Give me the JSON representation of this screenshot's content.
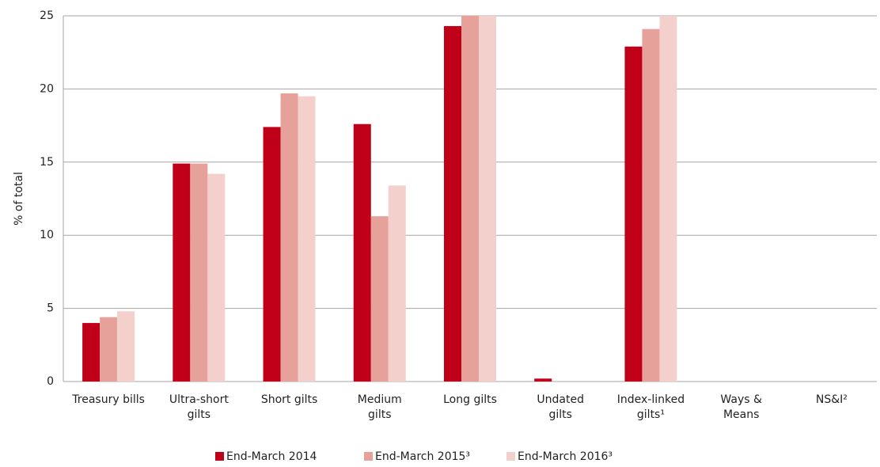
{
  "chart_data": {
    "type": "bar",
    "y_label": "% of total",
    "categories": [
      "Treasury bills",
      "Ultra-short\ngilts",
      "Short gilts",
      "Medium\ngilts",
      "Long gilts",
      "Undated\ngilts",
      "Index-linked\ngilts¹",
      "Ways &\nMeans",
      "NS&I²"
    ],
    "series": [
      {
        "name": "End-March 2014",
        "color": "#c00018",
        "values": [
          4.0,
          14.9,
          17.4,
          17.6,
          24.3,
          0.2,
          22.9,
          0,
          0
        ]
      },
      {
        "name": "End-March 2015³",
        "color": "#e6a19b",
        "values": [
          4.4,
          14.9,
          19.7,
          11.3,
          25,
          0,
          24.1,
          0,
          0
        ]
      },
      {
        "name": "End-March 2016³",
        "color": "#f4d0cd",
        "values": [
          4.8,
          14.2,
          19.5,
          13.4,
          25,
          0,
          25,
          0,
          0
        ]
      }
    ],
    "ylim": [
      0,
      25
    ],
    "yticks": [
      0,
      5,
      10,
      15,
      20,
      25
    ],
    "grid": true
  }
}
